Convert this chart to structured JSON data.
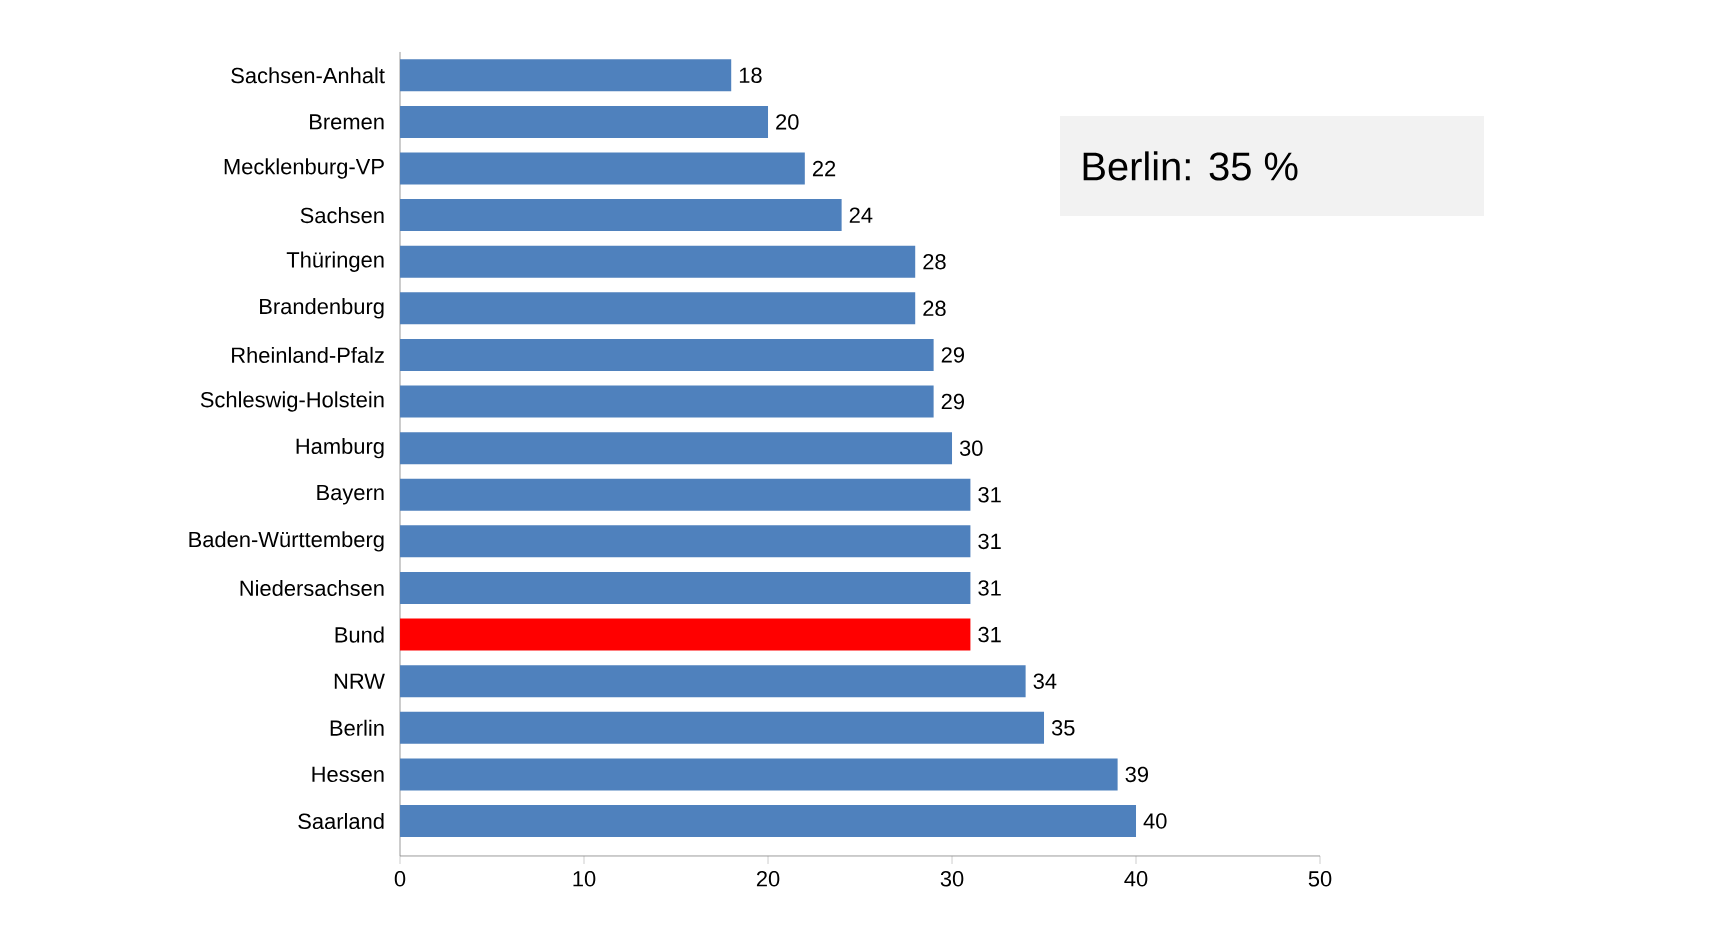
{
  "chart_data": {
    "type": "bar",
    "orientation": "horizontal",
    "categories": [
      "Sachsen-Anhalt",
      "Bremen",
      "Mecklenburg-VP",
      "Sachsen",
      "Thüringen",
      "Brandenburg",
      "Rheinland-Pfalz",
      "Schleswig-Holstein",
      "Hamburg",
      "Bayern",
      "Baden-Württemberg",
      "Niedersachsen",
      "Bund",
      "NRW",
      "Berlin",
      "Hessen",
      "Saarland"
    ],
    "values": [
      18,
      20,
      22,
      24,
      28,
      28,
      29,
      29,
      30,
      31,
      31,
      31,
      31,
      34,
      35,
      39,
      40
    ],
    "colors": [
      "#4f81bd",
      "#4f81bd",
      "#4f81bd",
      "#4f81bd",
      "#4f81bd",
      "#4f81bd",
      "#4f81bd",
      "#4f81bd",
      "#4f81bd",
      "#4f81bd",
      "#4f81bd",
      "#4f81bd",
      "#ff0000",
      "#4f81bd",
      "#4f81bd",
      "#4f81bd",
      "#4f81bd"
    ],
    "xlim": [
      0,
      50
    ],
    "xticks": [
      0,
      10,
      20,
      30,
      40,
      50
    ],
    "data_labels": true,
    "grid": false,
    "annotations": [
      "Berlin: 35 %"
    ]
  }
}
